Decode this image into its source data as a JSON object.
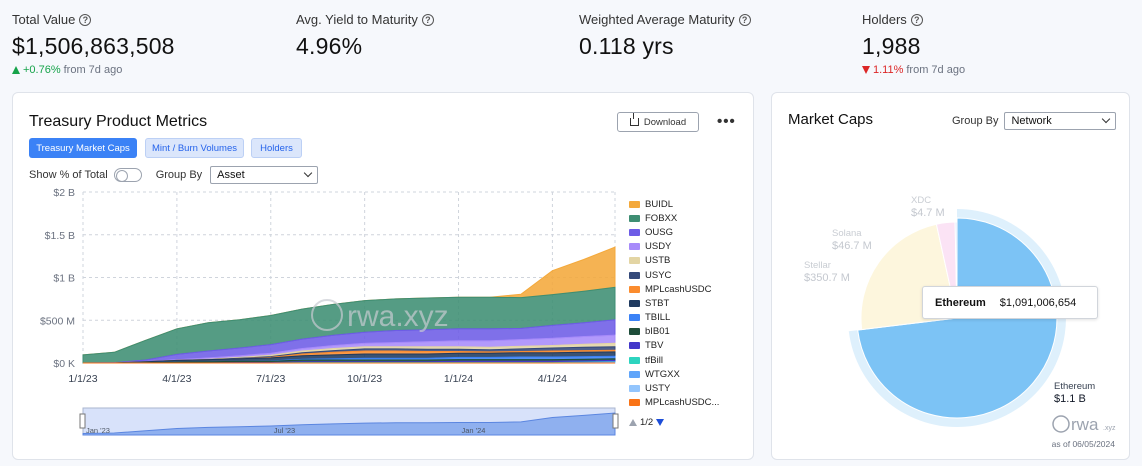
{
  "kpis": [
    {
      "label": "Total Value",
      "value": "$1,506,863,508",
      "change": "+0.76%",
      "suffix": "from 7d ago",
      "direction": "up"
    },
    {
      "label": "Avg. Yield to Maturity",
      "value": "4.96%"
    },
    {
      "label": "Weighted Average Maturity",
      "value": "0.118 yrs"
    },
    {
      "label": "Holders",
      "value": "1,988",
      "change": "1.11%",
      "suffix": "from 7d ago",
      "direction": "down"
    }
  ],
  "left_card": {
    "title": "Treasury Product Metrics",
    "download_label": "Download",
    "more_label": "•••",
    "tabs": [
      "Treasury Market Caps",
      "Mint / Burn Volumes",
      "Holders"
    ],
    "show_pct_label": "Show % of Total",
    "group_by_label": "Group By",
    "group_by_value": "Asset",
    "pager": "1/2",
    "watermark": "rwa.xyz"
  },
  "right_card": {
    "title": "Market Caps",
    "group_by_label": "Group By",
    "group_by_value": "Network",
    "tooltip_name": "Ethereum",
    "tooltip_value": "$1,091,006,654",
    "watermark": "rwa",
    "watermark_suffix": ".xyz",
    "as_of": "as of 06/05/2024"
  },
  "chart_data": [
    {
      "type": "area",
      "stacked": true,
      "y_ticks": [
        "$2 B",
        "$1.5 B",
        "$1 B",
        "$500 M",
        "$0 K"
      ],
      "y_tick_values": [
        2000,
        1500,
        1000,
        500,
        0
      ],
      "x_ticks": [
        "1/1/23",
        "4/1/23",
        "7/1/23",
        "10/1/23",
        "1/1/24",
        "4/1/24"
      ],
      "x": [
        "2023-01",
        "2023-02",
        "2023-03",
        "2023-04",
        "2023-05",
        "2023-06",
        "2023-07",
        "2023-08",
        "2023-09",
        "2023-10",
        "2023-11",
        "2023-12",
        "2024-01",
        "2024-02",
        "2024-03",
        "2024-04",
        "2024-05",
        "2024-06"
      ],
      "ylim": [
        0,
        2000
      ],
      "grid": true,
      "legend_position": "right",
      "navigator_labels": [
        "Jan '23",
        "Jul '23",
        "Jan '24"
      ],
      "series": [
        {
          "name": "BUIDL",
          "color": "#f4a93b",
          "values": [
            0,
            0,
            0,
            0,
            0,
            0,
            0,
            0,
            0,
            0,
            0,
            0,
            0,
            0,
            40,
            280,
            370,
            470
          ]
        },
        {
          "name": "FOBXX",
          "color": "#3e8e73",
          "values": [
            95,
            120,
            230,
            300,
            330,
            330,
            340,
            350,
            360,
            370,
            370,
            370,
            370,
            370,
            360,
            360,
            370,
            380
          ]
        },
        {
          "name": "OUSG",
          "color": "#6d5ce6",
          "values": [
            0,
            5,
            20,
            60,
            80,
            90,
            100,
            110,
            120,
            130,
            140,
            140,
            140,
            140,
            130,
            150,
            160,
            180
          ]
        },
        {
          "name": "USDY",
          "color": "#a78bfa",
          "values": [
            0,
            0,
            0,
            10,
            15,
            20,
            25,
            30,
            35,
            40,
            50,
            60,
            70,
            75,
            80,
            85,
            90,
            95
          ]
        },
        {
          "name": "USTB",
          "color": "#e3d5a4",
          "values": [
            0,
            0,
            0,
            0,
            5,
            10,
            15,
            20,
            25,
            25,
            25,
            30,
            30,
            30,
            30,
            30,
            35,
            40
          ]
        },
        {
          "name": "USYC",
          "color": "#34497a",
          "values": [
            0,
            0,
            0,
            0,
            0,
            5,
            10,
            15,
            20,
            25,
            25,
            25,
            25,
            25,
            30,
            35,
            40,
            40
          ]
        },
        {
          "name": "MPLcashUSDC",
          "color": "#fb8c2e",
          "values": [
            0,
            0,
            0,
            0,
            0,
            0,
            5,
            20,
            30,
            35,
            35,
            30,
            20,
            15,
            15,
            20,
            20,
            20
          ]
        },
        {
          "name": "STBT",
          "color": "#1f3a5f",
          "values": [
            0,
            0,
            10,
            20,
            25,
            30,
            35,
            40,
            45,
            50,
            50,
            50,
            50,
            50,
            50,
            50,
            50,
            50
          ]
        },
        {
          "name": "TBILL",
          "color": "#3b82f6",
          "values": [
            0,
            0,
            0,
            0,
            0,
            0,
            5,
            10,
            15,
            20,
            20,
            20,
            25,
            25,
            30,
            30,
            30,
            30
          ]
        },
        {
          "name": "bIB01",
          "color": "#1e4d3a",
          "values": [
            0,
            0,
            5,
            10,
            15,
            15,
            15,
            20,
            20,
            20,
            20,
            20,
            20,
            20,
            20,
            20,
            20,
            20
          ]
        },
        {
          "name": "TBV",
          "color": "#4338ca",
          "values": [
            0,
            0,
            0,
            0,
            0,
            5,
            5,
            10,
            10,
            10,
            10,
            10,
            15,
            15,
            15,
            15,
            15,
            15
          ]
        },
        {
          "name": "tfBill",
          "color": "#2dd4bf",
          "values": [
            0,
            0,
            0,
            0,
            0,
            0,
            0,
            5,
            5,
            5,
            5,
            5,
            5,
            5,
            5,
            5,
            5,
            5
          ]
        },
        {
          "name": "WTGXX",
          "color": "#60a5fa",
          "values": [
            0,
            0,
            0,
            0,
            0,
            0,
            0,
            0,
            0,
            0,
            0,
            0,
            0,
            0,
            0,
            0,
            5,
            5
          ]
        },
        {
          "name": "USTY",
          "color": "#93c5fd",
          "values": [
            0,
            0,
            0,
            0,
            0,
            0,
            0,
            0,
            0,
            0,
            0,
            0,
            0,
            0,
            0,
            0,
            0,
            5
          ]
        },
        {
          "name": "MPLcashUSDC...",
          "color": "#f97316",
          "values": [
            0,
            0,
            0,
            0,
            0,
            0,
            0,
            0,
            0,
            0,
            0,
            0,
            0,
            0,
            0,
            0,
            0,
            0
          ]
        }
      ]
    },
    {
      "type": "pie",
      "slices": [
        {
          "name": "Ethereum",
          "value": 1091.0,
          "label": "$1.1 B",
          "color": "#7cc3f5"
        },
        {
          "name": "Stellar",
          "value": 350.7,
          "label": "$350.7 M",
          "color": "#fdf6dd"
        },
        {
          "name": "Solana",
          "value": 46.7,
          "label": "$46.7 M",
          "color": "#fbe3f5"
        },
        {
          "name": "XDC",
          "value": 4.7,
          "label": "$4.7 M",
          "color": "#dbeafe"
        }
      ]
    }
  ]
}
